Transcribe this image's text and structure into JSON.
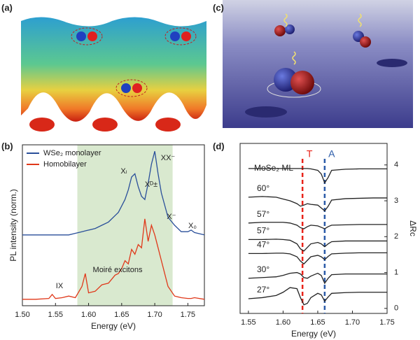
{
  "panel_labels": [
    "(a)",
    "(b)",
    "(c)",
    "(d)"
  ],
  "chart_data": [
    {
      "type": "line",
      "x_label": "Energy (eV)",
      "y_label": "PL intensity (norm.)",
      "xlim": [
        1.5,
        1.775
      ],
      "xticks": [
        {
          "value": 1.5,
          "label": "1.50"
        },
        1.55,
        {
          "value": 1.6,
          "label": "1.60"
        },
        1.65,
        {
          "value": 1.7,
          "label": "1.70"
        },
        1.75
      ],
      "ylim": [
        0,
        1
      ],
      "legend": "upper left",
      "shaded_region": [
        1.583,
        1.727
      ],
      "shaded_color": "#d9e9cf",
      "annotations": [
        "Xₗ",
        "Xᴰ±",
        "XX⁻",
        "X⁻",
        "X₀",
        "IX",
        "Moiré excitons"
      ],
      "x": [
        1.5,
        1.52,
        1.54,
        1.545,
        1.55,
        1.56,
        1.57,
        1.58,
        1.59,
        1.595,
        1.6,
        1.61,
        1.62,
        1.63,
        1.64,
        1.645,
        1.65,
        1.655,
        1.66,
        1.665,
        1.67,
        1.675,
        1.68,
        1.685,
        1.69,
        1.695,
        1.7,
        1.705,
        1.71,
        1.72,
        1.73,
        1.74,
        1.75,
        1.755,
        1.76,
        1.775
      ],
      "series": [
        {
          "name": "WSe₂ monolayer",
          "color": "#2a4f9a",
          "values": [
            0.44,
            0.44,
            0.44,
            0.44,
            0.44,
            0.44,
            0.44,
            0.45,
            0.46,
            0.465,
            0.47,
            0.48,
            0.5,
            0.52,
            0.56,
            0.58,
            0.62,
            0.66,
            0.72,
            0.8,
            0.82,
            0.74,
            0.68,
            0.66,
            0.76,
            0.88,
            0.96,
            0.82,
            0.7,
            0.55,
            0.5,
            0.46,
            0.46,
            0.47,
            0.455,
            0.44
          ]
        },
        {
          "name": "Homobilayer",
          "color": "#e0381a",
          "values": [
            0.04,
            0.04,
            0.045,
            0.07,
            0.045,
            0.05,
            0.06,
            0.05,
            0.12,
            0.2,
            0.08,
            0.09,
            0.13,
            0.14,
            0.19,
            0.2,
            0.23,
            0.28,
            0.26,
            0.35,
            0.32,
            0.38,
            0.36,
            0.54,
            0.4,
            0.5,
            0.44,
            0.36,
            0.28,
            0.12,
            0.06,
            0.05,
            0.045,
            0.045,
            0.05,
            0.04
          ]
        }
      ]
    },
    {
      "type": "line",
      "x_label": "Energy (eV)",
      "y_label": "ΔRc",
      "xlim": [
        1.538,
        1.75
      ],
      "xticks": [
        1.55,
        {
          "value": 1.6,
          "label": "1.60"
        },
        1.65,
        {
          "value": 1.7,
          "label": "1.70"
        },
        1.75
      ],
      "ylim": [
        -0.14,
        4.6
      ],
      "yticks": [
        0,
        1,
        2,
        3,
        4
      ],
      "y_axis_position": "right",
      "reference_lines": [
        {
          "label": "T",
          "x": 1.628,
          "color": "#e8231a"
        },
        {
          "label": "A",
          "x": 1.66,
          "color": "#2a5aa8"
        }
      ],
      "x": [
        1.55,
        1.57,
        1.59,
        1.6,
        1.61,
        1.62,
        1.625,
        1.63,
        1.635,
        1.64,
        1.65,
        1.655,
        1.66,
        1.665,
        1.67,
        1.69,
        1.71,
        1.73,
        1.75
      ],
      "series": [
        {
          "name": "MoSe₂ ML",
          "color": "#222222",
          "values": [
            3.9,
            3.9,
            3.9,
            3.9,
            3.9,
            3.9,
            3.9,
            3.9,
            3.9,
            3.89,
            3.85,
            3.75,
            3.5,
            3.65,
            3.85,
            3.88,
            3.89,
            3.89,
            3.89
          ]
        },
        {
          "name": "60°",
          "color": "#222222",
          "values": [
            3.1,
            3.12,
            3.1,
            3.05,
            3.0,
            2.92,
            2.85,
            2.88,
            2.92,
            2.9,
            2.88,
            2.8,
            2.72,
            2.85,
            3.02,
            3.06,
            3.07,
            3.08,
            3.08
          ]
        },
        {
          "name": "57°",
          "color": "#222222",
          "values": [
            2.38,
            2.4,
            2.4,
            2.4,
            2.38,
            2.32,
            2.25,
            2.22,
            2.28,
            2.32,
            2.3,
            2.26,
            2.22,
            2.28,
            2.32,
            2.33,
            2.34,
            2.34,
            2.34
          ]
        },
        {
          "name": "57°",
          "color": "#222222",
          "values": [
            1.92,
            1.92,
            1.93,
            1.92,
            1.9,
            1.8,
            1.66,
            1.6,
            1.7,
            1.8,
            1.84,
            1.8,
            1.72,
            1.8,
            1.86,
            1.88,
            1.88,
            1.88,
            1.88
          ]
        },
        {
          "name": "47°",
          "color": "#222222",
          "values": [
            1.53,
            1.53,
            1.54,
            1.54,
            1.52,
            1.44,
            1.32,
            1.24,
            1.34,
            1.44,
            1.48,
            1.44,
            1.36,
            1.45,
            1.52,
            1.54,
            1.55,
            1.55,
            1.55
          ]
        },
        {
          "name": "30°",
          "color": "#222222",
          "values": [
            0.84,
            0.86,
            0.88,
            0.92,
            0.98,
            1.0,
            0.96,
            0.86,
            0.84,
            0.9,
            0.98,
            0.92,
            0.7,
            0.84,
            0.94,
            0.96,
            0.96,
            0.96,
            0.96
          ]
        },
        {
          "name": "27°",
          "color": "#222222",
          "values": [
            0.27,
            0.3,
            0.36,
            0.45,
            0.58,
            0.55,
            0.3,
            0.1,
            0.14,
            0.3,
            0.42,
            0.38,
            0.2,
            0.32,
            0.42,
            0.44,
            0.45,
            0.45,
            0.45
          ]
        }
      ]
    }
  ]
}
